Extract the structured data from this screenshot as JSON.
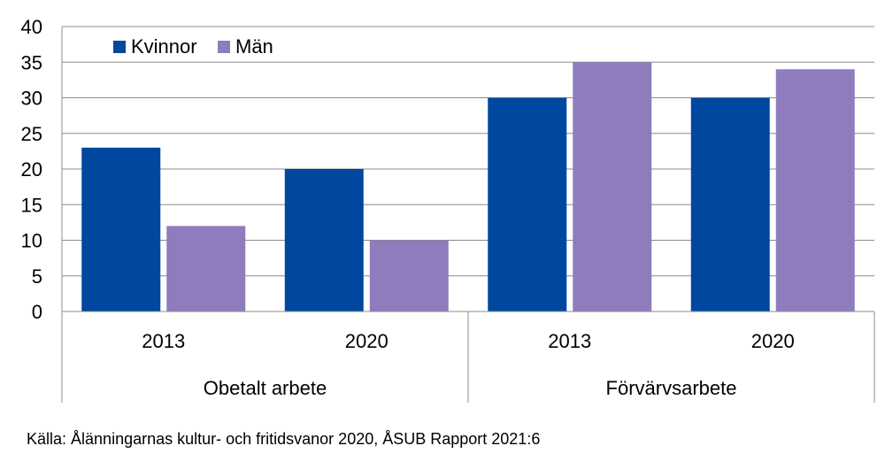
{
  "chart_data": {
    "type": "bar",
    "groups": [
      {
        "label": "Obetalt arbete",
        "categories": [
          "2013",
          "2020"
        ]
      },
      {
        "label": "Förvärvsarbete",
        "categories": [
          "2013",
          "2020"
        ]
      }
    ],
    "categories": [
      "2013",
      "2020",
      "2013",
      "2020"
    ],
    "series": [
      {
        "name": "Kvinnor",
        "color": "#0047A0",
        "values": [
          23,
          20,
          30,
          30
        ]
      },
      {
        "name": "Män",
        "color": "#8E7CBC",
        "values": [
          12,
          10,
          35,
          34
        ]
      }
    ],
    "ylim": [
      0,
      40
    ],
    "yticks": [
      "0",
      "5",
      "10",
      "15",
      "20",
      "25",
      "30",
      "35",
      "40"
    ],
    "grid": true,
    "legend_position": "top-left"
  },
  "source": "Källa: Ålänningarnas kultur- och fritidsvanor 2020, ÅSUB Rapport 2021:6"
}
